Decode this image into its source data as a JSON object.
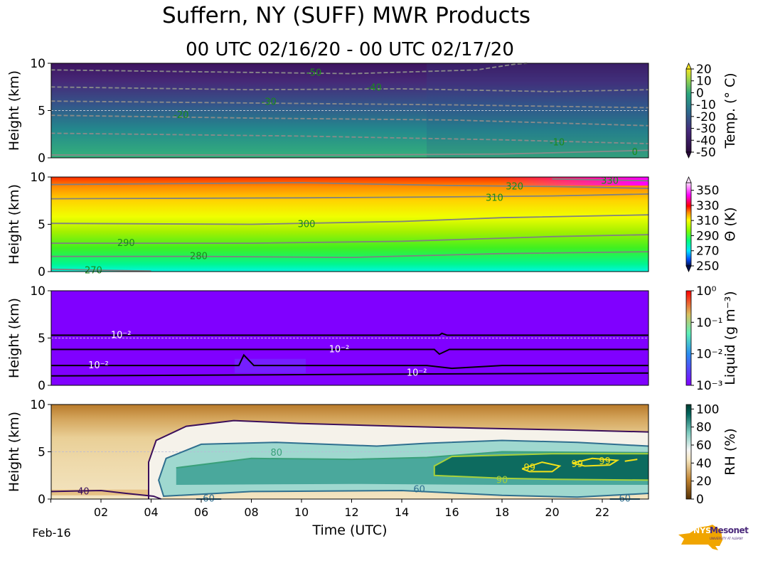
{
  "title": "Suffern, NY (SUFF) MWR Products",
  "subtitle": "00 UTC 02/16/20 - 00 UTC 02/17/20",
  "logo": {
    "text1": "NYS",
    "text2": "Mesonet",
    "text3": "UNIVERSITY AT ALBANY",
    "color_state": "#f0a500",
    "color_text": "#4b2a7b"
  },
  "chart_data": [
    {
      "type": "heatmap",
      "name": "temperature",
      "ylabel": "Height (km)",
      "ylim": [
        0,
        10
      ],
      "yticks": [
        "0",
        "5",
        "10"
      ],
      "xlim": [
        0,
        23.84
      ],
      "colorbar": {
        "label": "Temp. (° C)",
        "ticks": [
          "20",
          "10",
          "0",
          "-10",
          "-20",
          "-30",
          "-40",
          "-50"
        ],
        "range": [
          -50,
          20
        ]
      },
      "contours": [
        {
          "level": "-50",
          "dashed": true,
          "points": [
            [
              0,
              9.3
            ],
            [
              6,
              9.1
            ],
            [
              12,
              8.9
            ],
            [
              17,
              9.3
            ],
            [
              18.5,
              9.9
            ],
            [
              19,
              10
            ]
          ],
          "label_at": [
            10.5,
            9.0
          ]
        },
        {
          "level": "-40",
          "dashed": true,
          "points": [
            [
              0,
              7.5
            ],
            [
              8,
              7.2
            ],
            [
              14,
              7.3
            ],
            [
              20,
              7.0
            ],
            [
              23.84,
              7.2
            ]
          ],
          "label_at": [
            12.9,
            7.4
          ]
        },
        {
          "level": "-30",
          "dashed": true,
          "points": [
            [
              0,
              6.0
            ],
            [
              8,
              5.8
            ],
            [
              16,
              5.6
            ],
            [
              23.84,
              5.3
            ]
          ],
          "label_at": [
            8.7,
            5.9
          ]
        },
        {
          "level": "-20",
          "dashed": true,
          "points": [
            [
              0,
              4.5
            ],
            [
              8,
              4.2
            ],
            [
              16,
              4.0
            ],
            [
              23.84,
              3.4
            ]
          ],
          "label_at": [
            5.2,
            4.5
          ]
        },
        {
          "level": "-10",
          "dashed": true,
          "points": [
            [
              0,
              2.6
            ],
            [
              10,
              2.3
            ],
            [
              18,
              1.9
            ],
            [
              23.84,
              1.5
            ]
          ],
          "label_at": [
            20.2,
            1.6
          ]
        },
        {
          "level": "0",
          "dashed": false,
          "points": [
            [
              0,
              0.3
            ],
            [
              12,
              0.3
            ],
            [
              18,
              0.4
            ],
            [
              23.84,
              0.8
            ]
          ],
          "label_at": [
            23.3,
            0.6
          ]
        }
      ]
    },
    {
      "type": "heatmap",
      "name": "potential-temperature",
      "ylabel": "Height (km)",
      "ylim": [
        0,
        10
      ],
      "yticks": [
        "0",
        "5",
        "10"
      ],
      "xlim": [
        0,
        23.84
      ],
      "colorbar": {
        "label": "Θ (K)",
        "ticks": [
          "350",
          "330",
          "310",
          "290",
          "270",
          "250"
        ],
        "range": [
          250,
          360
        ]
      },
      "contours": [
        {
          "level": "270",
          "points": [
            [
              0,
              0.25
            ],
            [
              4,
              0.05
            ]
          ],
          "label_at": [
            1.7,
            0.1
          ]
        },
        {
          "level": "280",
          "points": [
            [
              0,
              1.6
            ],
            [
              6,
              1.6
            ],
            [
              12,
              1.5
            ],
            [
              18,
              1.9
            ],
            [
              23.84,
              2.1
            ]
          ],
          "label_at": [
            5.9,
            1.6
          ]
        },
        {
          "level": "290",
          "points": [
            [
              0,
              3.0
            ],
            [
              8,
              3.0
            ],
            [
              14,
              3.2
            ],
            [
              20,
              3.7
            ],
            [
              23.84,
              3.9
            ]
          ],
          "label_at": [
            3.0,
            3.0
          ]
        },
        {
          "level": "300",
          "points": [
            [
              0,
              5.1
            ],
            [
              8,
              5.0
            ],
            [
              14,
              5.3
            ],
            [
              18,
              5.7
            ],
            [
              23.84,
              6.0
            ]
          ],
          "label_at": [
            10.2,
            5.0
          ]
        },
        {
          "level": "310",
          "points": [
            [
              0,
              7.7
            ],
            [
              10,
              7.8
            ],
            [
              16,
              7.9
            ],
            [
              20,
              8.0
            ],
            [
              23.84,
              8.2
            ]
          ],
          "label_at": [
            17.7,
            7.8
          ]
        },
        {
          "level": "320",
          "points": [
            [
              0,
              9.2
            ],
            [
              10,
              9.4
            ],
            [
              16,
              9.1
            ],
            [
              20,
              9.0
            ],
            [
              23.84,
              8.8
            ]
          ],
          "label_at": [
            18.5,
            9.0
          ]
        },
        {
          "level": "330",
          "points": [
            [
              20,
              9.8
            ],
            [
              23.84,
              9.6
            ]
          ],
          "label_at": [
            22.3,
            9.6
          ]
        }
      ]
    },
    {
      "type": "heatmap",
      "name": "liquid",
      "ylabel": "Height (km)",
      "ylim": [
        0,
        10
      ],
      "yticks": [
        "0",
        "5",
        "10"
      ],
      "xlim": [
        0,
        23.84
      ],
      "colorbar": {
        "label": "Liquid (g m⁻³)",
        "ticks": [
          "10⁰",
          "10⁻¹",
          "10⁻²",
          "10⁻³"
        ],
        "range": [
          0.001,
          1
        ],
        "scale": "log"
      },
      "contours": [
        {
          "level": "10⁻²",
          "points": [
            [
              0,
              5.3
            ],
            [
              15.5,
              5.3
            ],
            [
              15.6,
              5.5
            ],
            [
              15.8,
              5.3
            ],
            [
              23.84,
              5.3
            ]
          ],
          "label_at": [
            2.8,
            5.3
          ]
        },
        {
          "level": "10⁻²",
          "points": [
            [
              0,
              3.8
            ],
            [
              15.3,
              3.8
            ],
            [
              15.5,
              3.3
            ],
            [
              15.9,
              3.8
            ],
            [
              23.84,
              3.8
            ]
          ],
          "label_at": [
            11.5,
            3.8
          ]
        },
        {
          "level": "10⁻²",
          "points": [
            [
              0,
              2.1
            ],
            [
              7.5,
              2.1
            ],
            [
              7.7,
              3.2
            ],
            [
              8.1,
              2.1
            ],
            [
              15,
              2.1
            ],
            [
              16,
              1.8
            ],
            [
              18,
              2.1
            ],
            [
              23.84,
              2.1
            ]
          ],
          "label_at": [
            1.9,
            2.1
          ]
        },
        {
          "level": "10⁻²",
          "points": [
            [
              0,
              1.0
            ],
            [
              8,
              1.1
            ],
            [
              15,
              1.2
            ],
            [
              23.84,
              1.3
            ]
          ],
          "label_at": [
            14.6,
            1.3
          ]
        }
      ]
    },
    {
      "type": "heatmap",
      "name": "relative-humidity",
      "ylabel": "Height (km)",
      "ylim": [
        0,
        10
      ],
      "yticks": [
        "0",
        "5",
        "10"
      ],
      "xlabel": "Time (UTC)",
      "xlim": [
        0,
        23.84
      ],
      "xticks": [
        {
          "h": 0,
          "label": "Feb-16"
        },
        {
          "h": 2,
          "label": "02"
        },
        {
          "h": 4,
          "label": "04"
        },
        {
          "h": 6,
          "label": "06"
        },
        {
          "h": 8,
          "label": "08"
        },
        {
          "h": 10,
          "label": "10"
        },
        {
          "h": 12,
          "label": "12"
        },
        {
          "h": 14,
          "label": "14"
        },
        {
          "h": 16,
          "label": "16"
        },
        {
          "h": 18,
          "label": "18"
        },
        {
          "h": 20,
          "label": "20"
        },
        {
          "h": 22,
          "label": "22"
        }
      ],
      "colorbar": {
        "label": "RH (%)",
        "ticks": [
          "100",
          "80",
          "60",
          "40",
          "20",
          "0"
        ],
        "range": [
          0,
          105
        ]
      },
      "contours": [
        {
          "level": "40",
          "color": "#3b0f5c",
          "points": [
            [
              3.9,
              0
            ],
            [
              3.9,
              3.9
            ],
            [
              4.2,
              6.2
            ],
            [
              5.4,
              7.7
            ],
            [
              7.3,
              8.3
            ],
            [
              9.9,
              8.0
            ],
            [
              13.9,
              7.7
            ],
            [
              17,
              7.5
            ],
            [
              20.7,
              7.3
            ],
            [
              23.84,
              7.1
            ]
          ],
          "label_at": null
        },
        {
          "level": "40",
          "color": "#3b0f5c",
          "points": [
            [
              0,
              0.8
            ],
            [
              2,
              0.9
            ],
            [
              3,
              0.6
            ],
            [
              4.1,
              0.3
            ],
            [
              4.4,
              0
            ]
          ],
          "label_at": [
            1.3,
            0.8
          ]
        },
        {
          "level": "60",
          "color": "#2f6f8f",
          "points": [
            [
              23.84,
              0.6
            ],
            [
              21,
              0.2
            ],
            [
              18,
              0.4
            ],
            [
              14,
              0.9
            ],
            [
              8,
              0.8
            ],
            [
              4.5,
              0.3
            ],
            [
              4.3,
              2
            ],
            [
              4.6,
              4.3
            ],
            [
              6,
              5.8
            ],
            [
              9,
              6.0
            ],
            [
              13,
              5.6
            ],
            [
              15,
              5.9
            ],
            [
              18,
              6.2
            ],
            [
              21,
              6.0
            ],
            [
              23.84,
              5.6
            ]
          ],
          "label_at": [
            14.7,
            1.0
          ]
        },
        {
          "level": "60",
          "color": "#2f6f8f",
          "points": [
            [
              5.8,
              0
            ],
            [
              6.8,
              0
            ]
          ],
          "label_at": [
            6.3,
            0.05
          ]
        },
        {
          "level": "60",
          "color": "#2f6f8f",
          "points": [
            [
              22.3,
              0
            ],
            [
              23.5,
              0
            ]
          ],
          "label_at": [
            22.9,
            0.05
          ]
        },
        {
          "level": "80",
          "color": "#3aa07a",
          "points": [
            [
              5,
              3.3
            ],
            [
              8,
              4.3
            ],
            [
              12,
              4.2
            ],
            [
              15,
              4.4
            ],
            [
              18,
              5.0
            ],
            [
              23.84,
              4.9
            ]
          ],
          "label_at": [
            9.0,
            4.9
          ]
        },
        {
          "level": "90",
          "color": "#a8d13a",
          "points": [
            [
              23.84,
              2.0
            ],
            [
              19.9,
              2.1
            ],
            [
              18,
              2.2
            ],
            [
              15.3,
              2.5
            ],
            [
              15.3,
              3.5
            ],
            [
              16,
              4.5
            ],
            [
              20,
              4.8
            ],
            [
              23.84,
              4.8
            ]
          ],
          "label_at": [
            18.0,
            2.0
          ]
        },
        {
          "level": "99",
          "color": "#f2e21a",
          "points": [
            [
              18.8,
              3.2
            ],
            [
              19.6,
              3.9
            ],
            [
              20.3,
              3.5
            ],
            [
              20.0,
              2.9
            ],
            [
              19.1,
              2.9
            ],
            [
              18.8,
              3.2
            ]
          ],
          "label_at": [
            19.1,
            3.3
          ]
        },
        {
          "level": "99",
          "color": "#f2e21a",
          "points": [
            [
              20.8,
              3.8
            ],
            [
              21.6,
              4.3
            ],
            [
              22.6,
              4.1
            ],
            [
              22.3,
              3.6
            ],
            [
              21.3,
              3.5
            ],
            [
              20.8,
              3.8
            ]
          ],
          "label_at": [
            21.0,
            3.7
          ]
        },
        {
          "level": "99",
          "color": "#f2e21a",
          "points": [
            [
              22.9,
              4.0
            ],
            [
              23.4,
              4.2
            ]
          ],
          "label_at": [
            22.1,
            4.0
          ]
        }
      ]
    }
  ]
}
